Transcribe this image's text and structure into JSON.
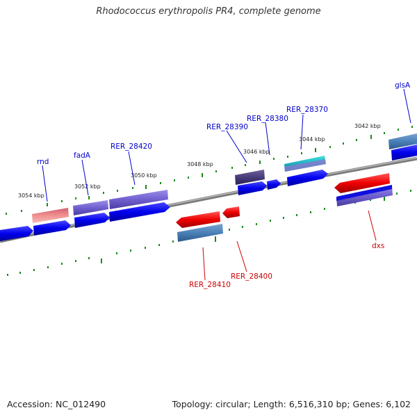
{
  "title": "Rhodococcus erythropolis PR4, complete genome",
  "footer": {
    "accession": "Accession: NC_012490",
    "summary": "Topology: circular; Length: 6,516,310 bp; Genes: 6,102"
  },
  "tick_labels": [
    "3054 kbp",
    "3052 kbp",
    "3050 kbp",
    "3048 kbp",
    "3046 kbp",
    "3044 kbp",
    "3042 kbp"
  ],
  "gene_labels": {
    "forward": [
      "rnd",
      "fadA",
      "RER_28420",
      "RER_28390",
      "RER_28380",
      "RER_28370",
      "glsA"
    ],
    "reverse": [
      "RER_28410",
      "RER_28400",
      "dxs"
    ]
  },
  "colors": {
    "forward_label": "#0000cc",
    "reverse_label": "#cc0000",
    "backbone": "#808080",
    "tick": "#1a8a1a",
    "cds_forward": "#0000ee",
    "cds_reverse": "#ee0000"
  }
}
